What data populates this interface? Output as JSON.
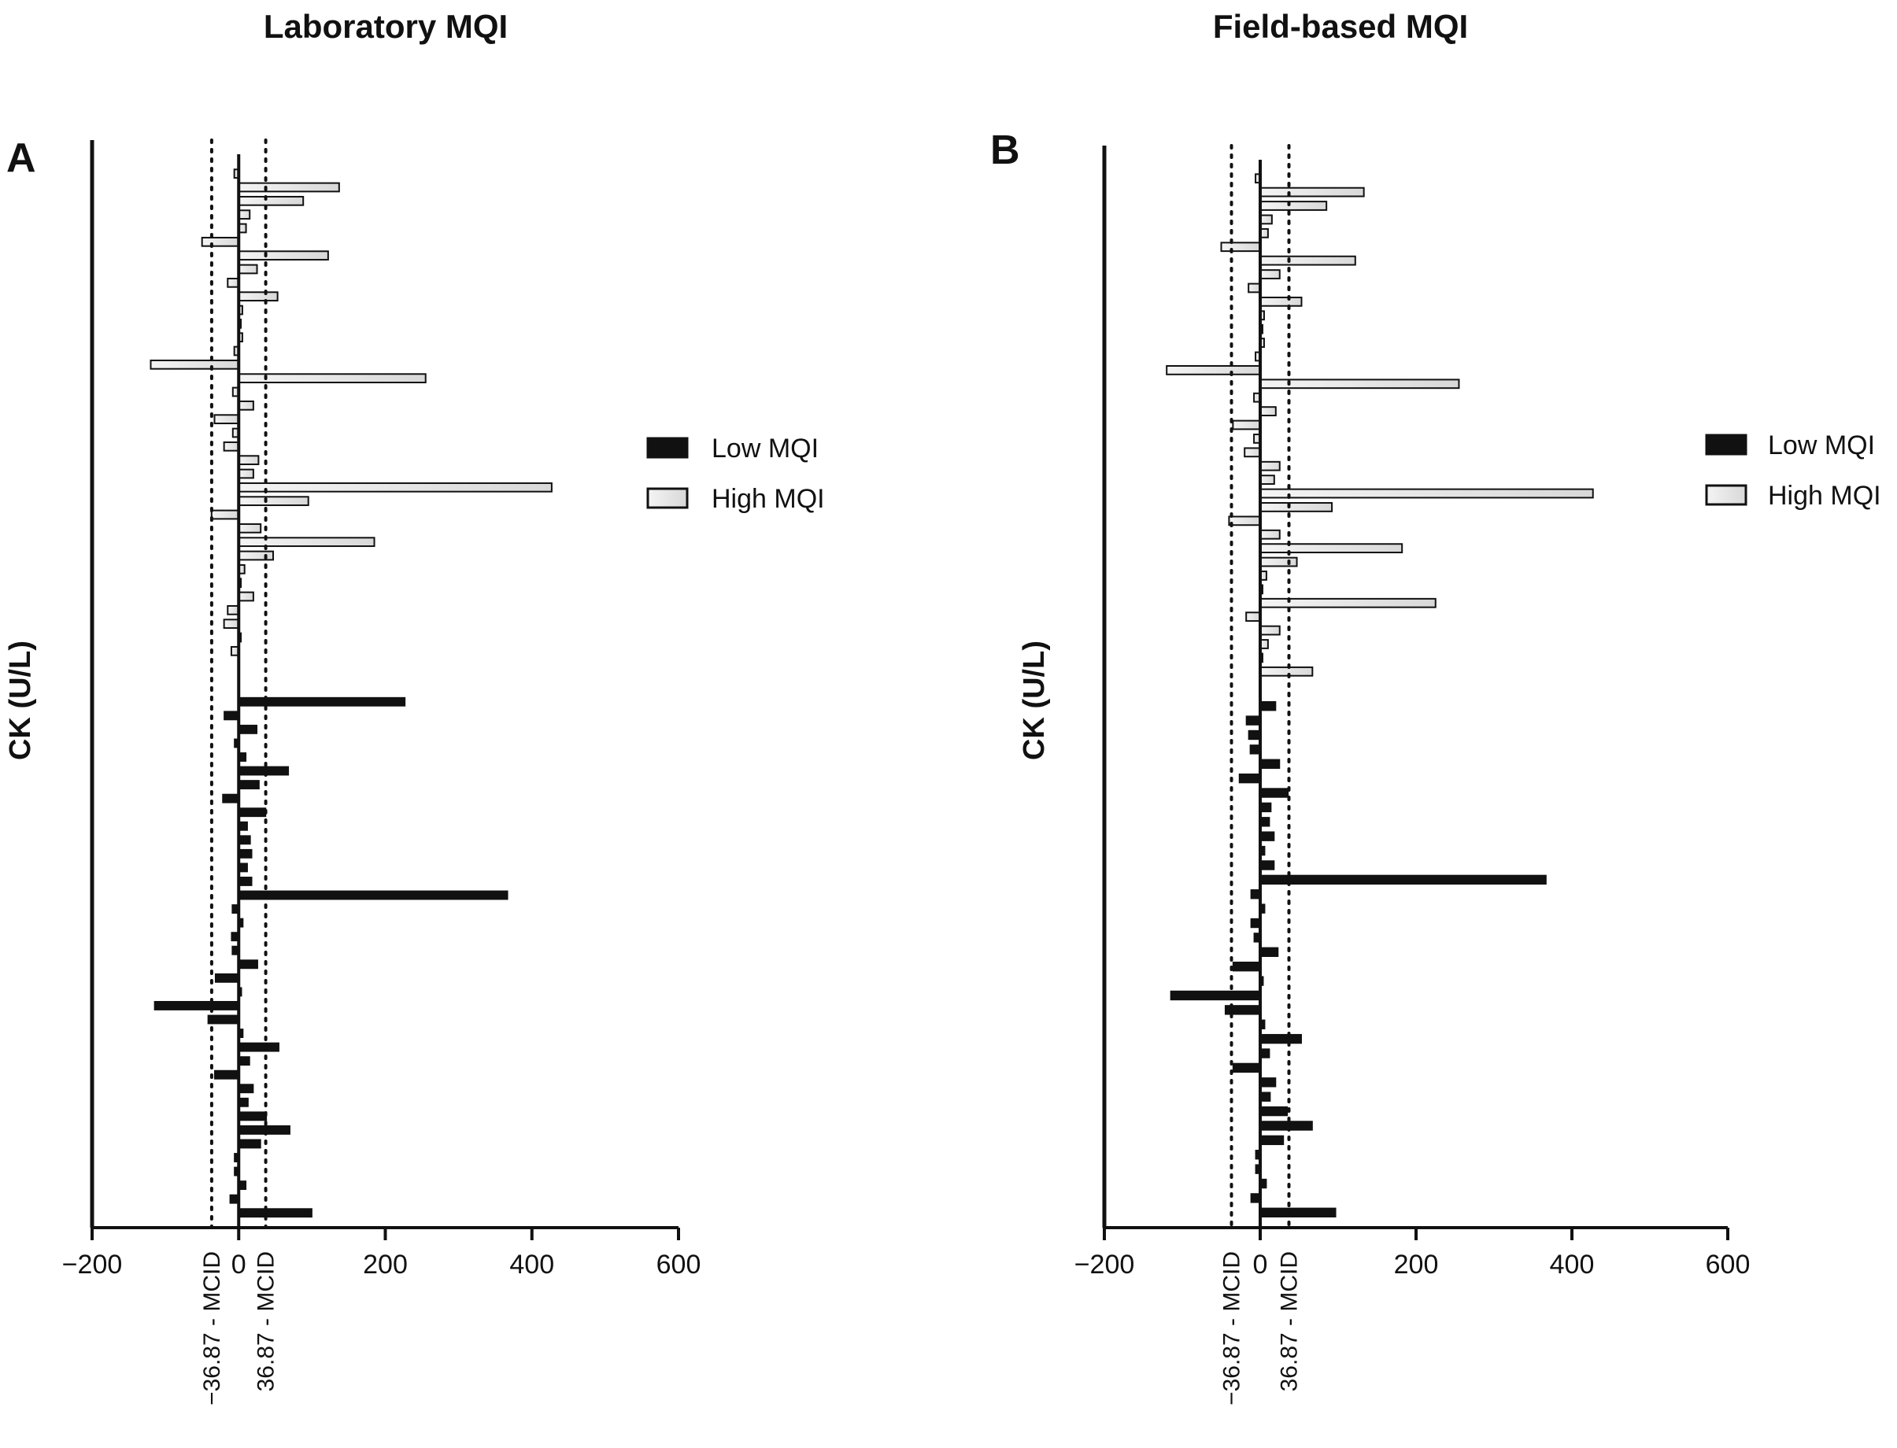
{
  "chart_data": [
    {
      "type": "bar",
      "orientation": "horizontal",
      "panel_letter": "A",
      "title": "Laboratory MQI",
      "ylabel": "CK (U/L)",
      "xlim": [
        -200,
        600
      ],
      "xticks": [
        "−200",
        "0",
        "200",
        "400",
        "600"
      ],
      "xtick_values": [
        -200,
        0,
        200,
        400,
        600
      ],
      "reference_lines": [
        {
          "value": -36.87,
          "label": "−36.87 - MCID"
        },
        {
          "value": 36.87,
          "label": "36.87 - MCID"
        }
      ],
      "legend": [
        {
          "name": "Low MQI",
          "color": "#111111"
        },
        {
          "name": "High MQI",
          "color": "#dcdcdc"
        }
      ],
      "legend_position": "right",
      "series": [
        {
          "name": "Low MQI",
          "fill": "#111111",
          "values": [
            227,
            -20,
            25,
            -6,
            10,
            68,
            28,
            -22,
            37,
            12,
            16,
            18,
            12,
            18,
            367,
            -9,
            6,
            -10,
            -9,
            26,
            -32,
            4,
            -115,
            -42,
            6,
            55,
            15,
            -33,
            20,
            13,
            38,
            70,
            30,
            -6,
            -6,
            10,
            -12,
            100
          ]
        },
        {
          "name": "High MQI",
          "fill": "#dcdcdc",
          "values": [
            -6,
            137,
            88,
            15,
            10,
            -50,
            122,
            25,
            -15,
            53,
            5,
            3,
            5,
            -6,
            -120,
            255,
            -8,
            20,
            -33,
            -8,
            -20,
            27,
            20,
            427,
            95,
            -37,
            30,
            185,
            47,
            8,
            3,
            20,
            -15,
            -20,
            3,
            -10
          ]
        }
      ]
    },
    {
      "type": "bar",
      "orientation": "horizontal",
      "panel_letter": "B",
      "title": "Field-based MQI",
      "ylabel": "CK (U/L)",
      "xlim": [
        -200,
        600
      ],
      "xticks": [
        "−200",
        "0",
        "200",
        "400",
        "600"
      ],
      "xtick_values": [
        -200,
        0,
        200,
        400,
        600
      ],
      "reference_lines": [
        {
          "value": -36.87,
          "label": "−36.87 - MCID"
        },
        {
          "value": 36.87,
          "label": "36.87 - MCID"
        }
      ],
      "legend": [
        {
          "name": "Low MQI",
          "color": "#111111"
        },
        {
          "name": "High MQI",
          "color": "#dcdcdc"
        }
      ],
      "legend_position": "right",
      "series": [
        {
          "name": "Low MQI",
          "fill": "#111111",
          "values": [
            20,
            -18,
            -15,
            -13,
            25,
            -27,
            36,
            14,
            12,
            18,
            6,
            18,
            367,
            -12,
            6,
            -12,
            -8,
            23,
            -35,
            4,
            -115,
            -45,
            6,
            53,
            12,
            -35,
            20,
            13,
            35,
            67,
            30,
            -6,
            -6,
            8,
            -12,
            97
          ]
        },
        {
          "name": "High MQI",
          "fill": "#dcdcdc",
          "values": [
            -6,
            133,
            85,
            15,
            10,
            -50,
            122,
            25,
            -15,
            53,
            5,
            3,
            5,
            -6,
            -120,
            255,
            -8,
            20,
            -35,
            -8,
            -20,
            25,
            18,
            427,
            92,
            -40,
            25,
            182,
            47,
            8,
            3,
            225,
            -18,
            25,
            10,
            3,
            67
          ]
        }
      ]
    }
  ]
}
